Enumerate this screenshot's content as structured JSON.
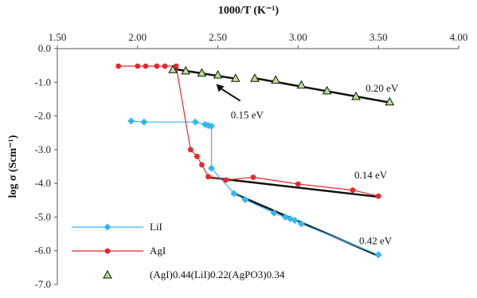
{
  "chart_data": {
    "type": "scatter",
    "xlabel": "1000/T (K⁻¹)",
    "ylabel": "log σ   (Scm⁻¹)",
    "xlim": [
      1.5,
      4.0
    ],
    "ylim": [
      -7.0,
      0.0
    ],
    "x_ticks": [
      1.5,
      2.0,
      2.5,
      3.0,
      3.5,
      4.0
    ],
    "y_ticks": [
      0,
      -1,
      -2,
      -3,
      -4,
      -5,
      -6,
      -7
    ],
    "x_tick_labels": [
      "1.50",
      "2.00",
      "2.50",
      "3.00",
      "3.50",
      "4.00"
    ],
    "y_tick_labels": [
      "0.0",
      "-1.0",
      "-2.0",
      "-3.0",
      "-4.0",
      "-5.0",
      "-6.0",
      "-7.0"
    ],
    "x_axis_position": "top",
    "grid": false,
    "legend_position": "bottom-left",
    "series": [
      {
        "name": "LiI",
        "color": "#33b5f0",
        "marker": "diamond",
        "x": [
          1.96,
          2.04,
          2.36,
          2.42,
          2.44,
          2.46,
          2.46,
          2.6,
          2.67,
          2.85,
          2.92,
          2.95,
          2.98,
          3.02,
          3.5
        ],
        "y": [
          -2.15,
          -2.18,
          -2.18,
          -2.25,
          -2.28,
          -2.3,
          -3.55,
          -4.3,
          -4.48,
          -4.88,
          -5.0,
          -5.05,
          -5.1,
          -5.2,
          -6.12
        ]
      },
      {
        "name": "AgI",
        "color": "#e8262b",
        "marker": "circle",
        "x": [
          1.88,
          2.0,
          2.05,
          2.12,
          2.17,
          2.24,
          2.33,
          2.37,
          2.4,
          2.44,
          2.55,
          2.72,
          3.0,
          3.34,
          3.5
        ],
        "y": [
          -0.52,
          -0.52,
          -0.52,
          -0.52,
          -0.52,
          -0.52,
          -3.0,
          -3.2,
          -3.45,
          -3.8,
          -3.9,
          -3.82,
          -4.02,
          -4.2,
          -4.38
        ]
      },
      {
        "name": "(AgI)0.44(LiI)0.22(AgPO3)0.34",
        "color": "#7fbf3f",
        "marker": "triangle",
        "x": [
          2.22,
          2.3,
          2.4,
          2.5,
          2.61,
          2.73,
          2.86,
          3.02,
          3.18,
          3.36,
          3.57
        ],
        "y": [
          -0.62,
          -0.66,
          -0.72,
          -0.78,
          -0.88,
          -0.88,
          -0.93,
          -1.08,
          -1.25,
          -1.42,
          -1.58
        ]
      }
    ],
    "fit_lines": [
      {
        "x": [
          2.22,
          2.62
        ],
        "y": [
          -0.6,
          -0.9
        ]
      },
      {
        "x": [
          2.72,
          3.57
        ],
        "y": [
          -0.87,
          -1.6
        ]
      },
      {
        "x": [
          2.44,
          3.5
        ],
        "y": [
          -3.82,
          -4.4
        ]
      },
      {
        "x": [
          2.6,
          3.5
        ],
        "y": [
          -4.3,
          -6.15
        ]
      }
    ],
    "annotations": [
      {
        "text": "0.20 eV",
        "x": 3.42,
        "y": -1.28
      },
      {
        "text": "0.15 eV",
        "x": 2.58,
        "y": -2.07
      },
      {
        "text": "0.14 eV",
        "x": 3.35,
        "y": -3.85
      },
      {
        "text": "0.42 eV",
        "x": 3.38,
        "y": -5.8
      }
    ]
  }
}
